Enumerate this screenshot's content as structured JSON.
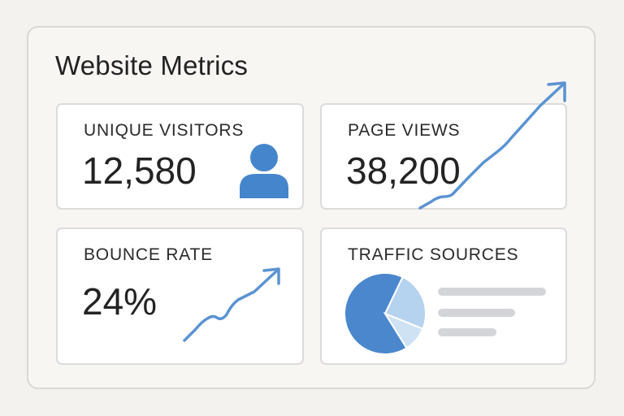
{
  "dashboard": {
    "title": "Website Metrics"
  },
  "metrics": {
    "unique_visitors": {
      "label": "UNIQUE VISITORS",
      "value": "12,580",
      "icon": "user-icon"
    },
    "page_views": {
      "label": "PAGE VIEWS",
      "value": "38,200",
      "icon": "trend-up-arrow-icon"
    },
    "bounce_rate": {
      "label": "BOUNCE RATE",
      "value": "24%",
      "icon": "trend-up-arrow-icon"
    },
    "traffic_sources": {
      "label": "TRAFFIC SOURCES",
      "icon": "pie-chart-icon",
      "slices": [
        {
          "share": 0.66,
          "color": "#4a87cc"
        },
        {
          "share": 0.24,
          "color": "#b5d2ef"
        },
        {
          "share": 0.1,
          "color": "#cfe2f4"
        }
      ]
    }
  },
  "colors": {
    "accent": "#4a87cc",
    "accent_light": "#b5d2ef",
    "legend_placeholder": "#d4d5d8"
  }
}
